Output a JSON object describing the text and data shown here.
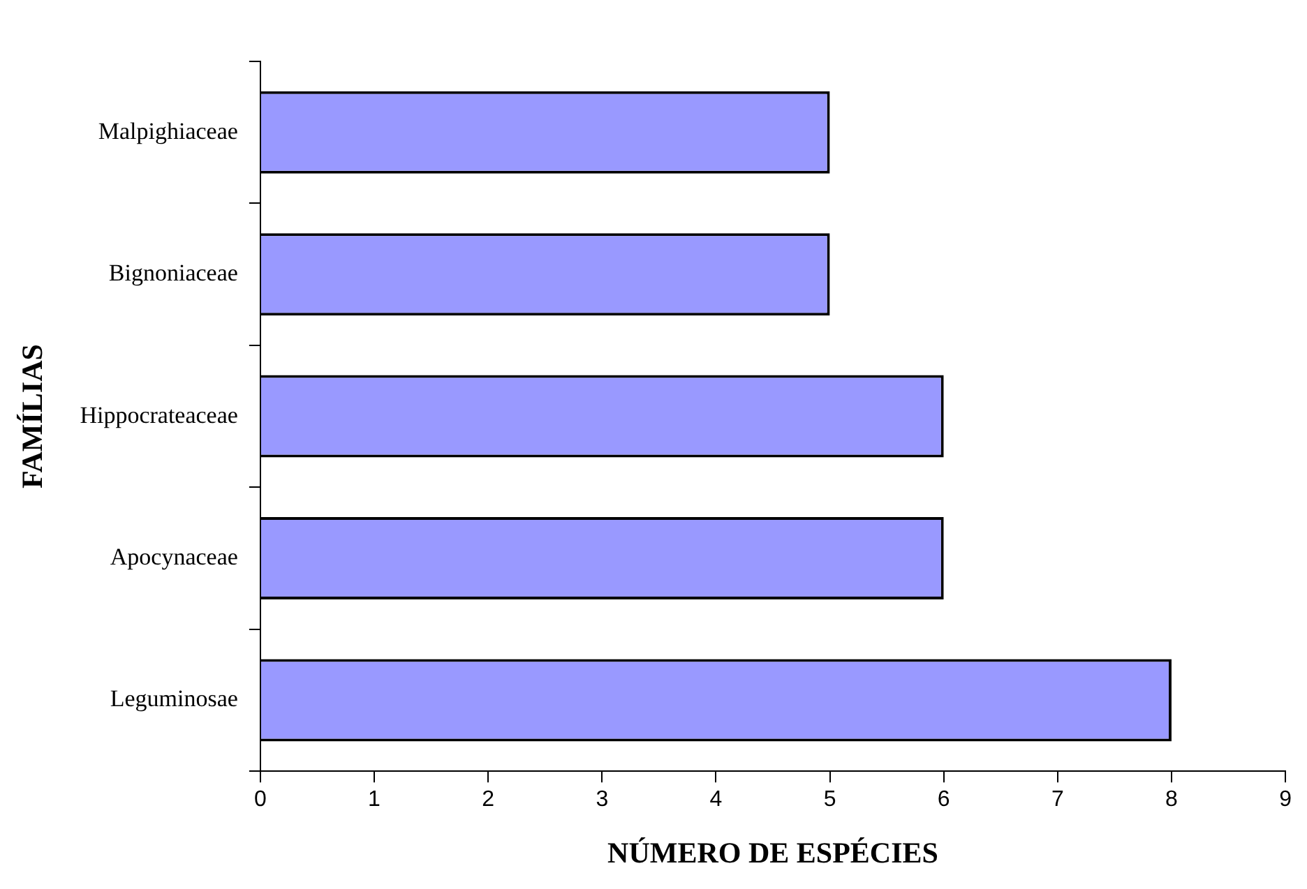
{
  "chart_data": {
    "type": "bar",
    "orientation": "horizontal",
    "xlabel": "NÚMERO DE ESPÉCIES",
    "ylabel": "FAMÍLIAS",
    "categories": [
      "Malpighiaceae",
      "Bignoniaceae",
      "Hippocrateaceae",
      "Apocynaceae",
      "Leguminosae"
    ],
    "values": [
      5,
      5,
      6,
      6,
      8
    ],
    "color": "#9999ff",
    "xlim": [
      0,
      9
    ],
    "xticks": [
      0,
      1,
      2,
      3,
      4,
      5,
      6,
      7,
      8,
      9
    ],
    "grid": false,
    "legend": false
  }
}
